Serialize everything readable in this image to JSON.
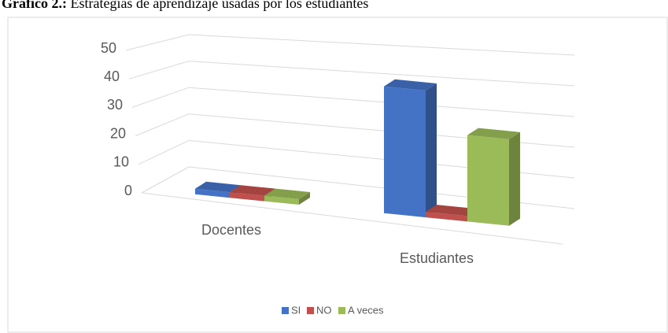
{
  "title_label": "Gráfico 2.:",
  "title": "Estrategias de aprendizaje usadas por los estudiantes",
  "chart_data": {
    "type": "bar3d",
    "categories": [
      "Docentes",
      "Estudiantes"
    ],
    "series": [
      {
        "name": "SI",
        "color": "#4472c4",
        "values": [
          0,
          44
        ]
      },
      {
        "name": "NO",
        "color": "#c0504d",
        "values": [
          0,
          0
        ]
      },
      {
        "name": "A veces",
        "color": "#9bbb59",
        "values": [
          0,
          30
        ]
      }
    ],
    "ylim": [
      0,
      50
    ],
    "yticks": [
      0,
      10,
      20,
      30,
      40,
      50
    ],
    "grid": true,
    "legend": "bottom"
  }
}
